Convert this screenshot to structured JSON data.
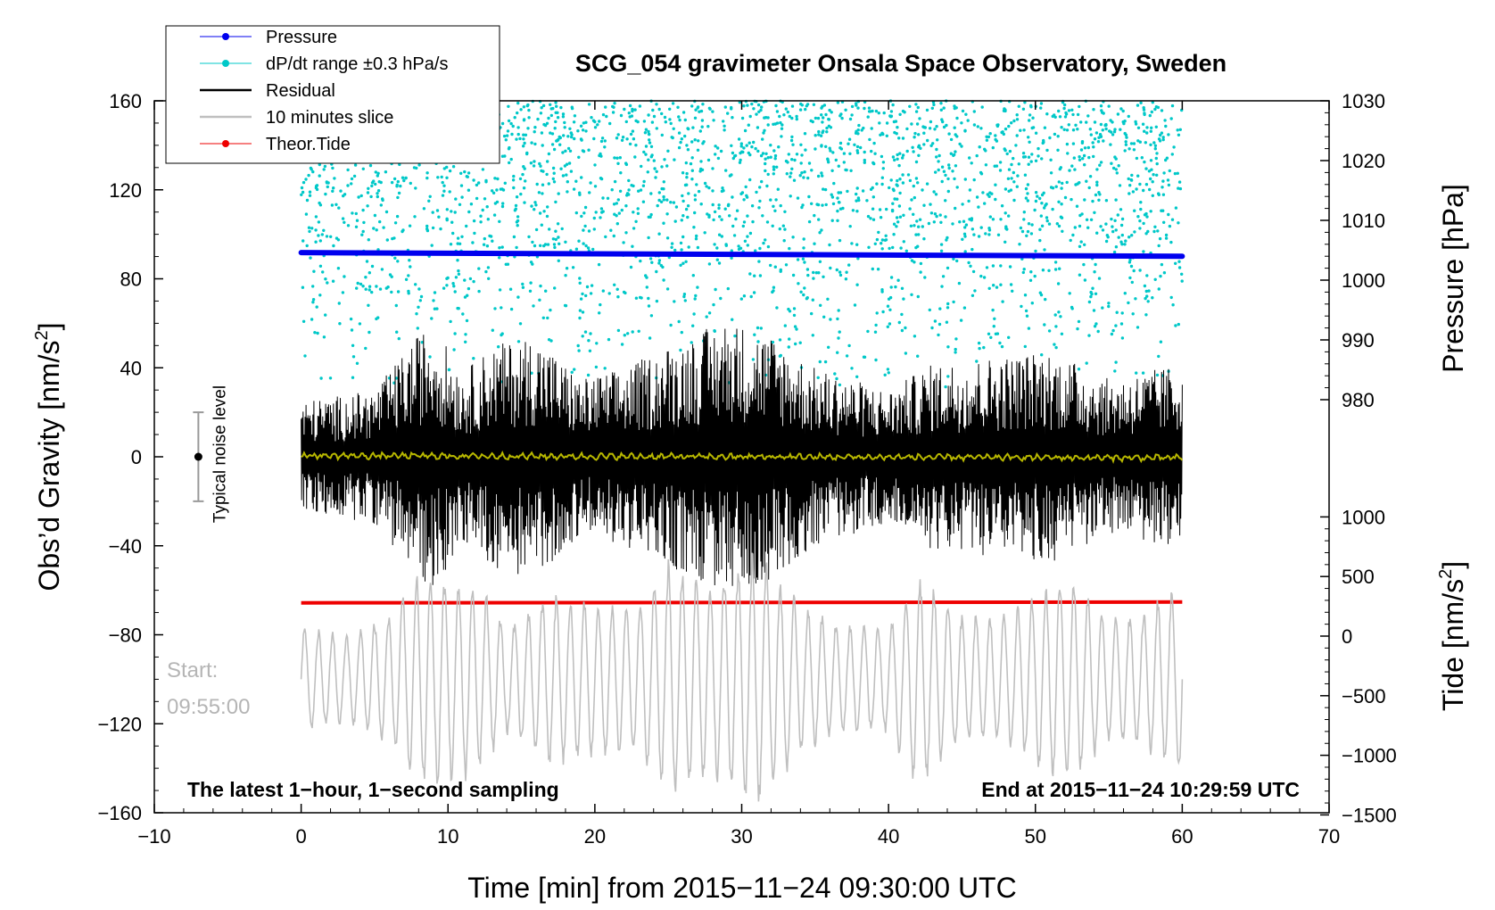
{
  "chart_data": {
    "type": "line",
    "title": "SCG_054 gravimeter Onsala Space Observatory, Sweden",
    "xlabel": "Time [min] from 2015−11−24 09:30:00 UTC",
    "ylabel_left_prefix": "Obs’d Gravity [nm/s",
    "ylabel_left_sup": "2",
    "ylabel_left_suffix": "]",
    "ylabel_right_top": "Pressure [hPa]",
    "ylabel_right_bottom_prefix": "Tide [nm/s",
    "ylabel_right_bottom_sup": "2",
    "ylabel_right_bottom_suffix": "]",
    "xlim": [
      -10,
      70
    ],
    "ylim_left": [
      -160,
      160
    ],
    "pressure_axis_range": [
      980,
      1030
    ],
    "tide_axis_range": [
      -1500,
      1000
    ],
    "x_ticks": [
      "−10",
      "0",
      "10",
      "20",
      "30",
      "40",
      "50",
      "60",
      "70"
    ],
    "y_ticks_left": [
      "160",
      "120",
      "80",
      "40",
      "0",
      "−40",
      "−80",
      "−120",
      "−160"
    ],
    "y_ticks_pressure": [
      "1030",
      "1020",
      "1010",
      "1000",
      "990",
      "980"
    ],
    "y_ticks_tide": [
      "1000",
      "500",
      "0",
      "−500",
      "−1000",
      "−1500"
    ],
    "legend": [
      {
        "label": "Pressure",
        "color": "#0000ee",
        "marker": "dot"
      },
      {
        "label": "dP/dt range ±0.3 hPa/s",
        "color": "#00c8c8",
        "marker": "dot"
      },
      {
        "label": "Residual",
        "color": "#000000",
        "marker": "none"
      },
      {
        "label": "10 minutes slice",
        "color": "#bfbfbf",
        "marker": "none"
      },
      {
        "label": "Theor.Tide",
        "color": "#ee0000",
        "marker": "dot"
      }
    ],
    "series": [
      {
        "name": "Pressure",
        "axis": "pressure",
        "x": [
          0,
          60
        ],
        "values": [
          1004.6,
          1004.0
        ],
        "color": "#0000ee"
      },
      {
        "name": "dP/dt range ±0.3 hPa/s",
        "axis": "left",
        "x_range": [
          0,
          60
        ],
        "y_range": [
          28,
          160
        ],
        "color": "#00c8c8",
        "note": "scattered points"
      },
      {
        "name": "Residual",
        "axis": "left",
        "x_range": [
          0,
          60
        ],
        "approx_amplitude": 45,
        "envelope_nm_s2": [
          [
            0,
            25
          ],
          [
            5,
            30
          ],
          [
            8,
            55
          ],
          [
            9,
            60
          ],
          [
            11,
            38
          ],
          [
            13,
            50
          ],
          [
            16,
            55
          ],
          [
            19,
            35
          ],
          [
            22,
            40
          ],
          [
            25,
            50
          ],
          [
            29,
            62
          ],
          [
            32,
            55
          ],
          [
            35,
            40
          ],
          [
            40,
            30
          ],
          [
            43,
            42
          ],
          [
            47,
            45
          ],
          [
            51,
            48
          ],
          [
            55,
            35
          ],
          [
            60,
            42
          ]
        ],
        "color": "#000000"
      },
      {
        "name": "Smoothed residual",
        "axis": "left",
        "x": [
          0,
          60
        ],
        "values": [
          0.5,
          -0.5
        ],
        "color": "#b8b800"
      },
      {
        "name": "10 minutes slice",
        "axis": "left",
        "x_range": [
          0,
          60
        ],
        "center": -100,
        "envelope_nm_s2": [
          [
            0,
            25
          ],
          [
            3,
            20
          ],
          [
            6,
            30
          ],
          [
            8,
            50
          ],
          [
            12,
            45
          ],
          [
            14,
            25
          ],
          [
            17,
            40
          ],
          [
            20,
            35
          ],
          [
            23,
            35
          ],
          [
            25,
            55
          ],
          [
            28,
            45
          ],
          [
            31,
            60
          ],
          [
            34,
            35
          ],
          [
            37,
            25
          ],
          [
            40,
            25
          ],
          [
            42,
            50
          ],
          [
            45,
            30
          ],
          [
            48,
            30
          ],
          [
            52,
            50
          ],
          [
            55,
            30
          ],
          [
            57,
            30
          ],
          [
            60,
            45
          ]
        ],
        "color": "#bfbfbf"
      },
      {
        "name": "Theor.Tide",
        "axis": "tide",
        "x": [
          0,
          60
        ],
        "values": [
          279,
          286
        ],
        "color": "#ee0000"
      }
    ],
    "noise_level": {
      "label": "Typical noise level",
      "x": -7,
      "center": 0,
      "half_range": 20
    },
    "annotations": {
      "start_label": "Start:",
      "start_time": "09:55:00",
      "bottom_left": "The latest 1−hour, 1−second sampling",
      "bottom_right": "End at 2015−11−24 10:29:59 UTC"
    }
  }
}
